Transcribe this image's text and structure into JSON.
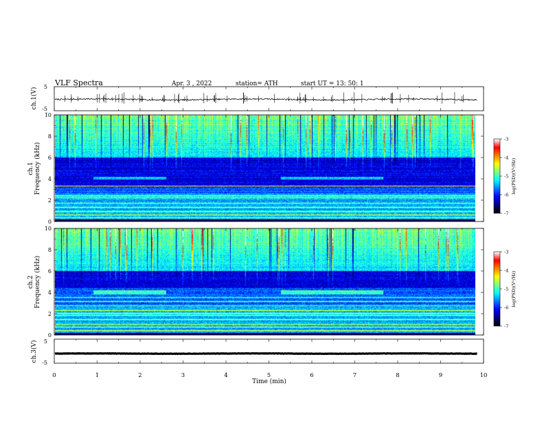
{
  "header": {
    "title": "VLF  Spectra",
    "date": "Apr. 3  , 2022",
    "station": "station= ATH",
    "start": "start  UT  =    13: 50: 1"
  },
  "colors": {
    "colormap": [
      "#000000",
      "#00007f",
      "#0000ff",
      "#007fff",
      "#00ffff",
      "#7fff7f",
      "#ffff00",
      "#ff7f00",
      "#ff0000",
      "#ffffff"
    ],
    "waveform": "#000000"
  },
  "chart_data": [
    {
      "type": "line",
      "id": "ch1-waveform",
      "ylabel": "ch.1(V)",
      "ylim": [
        -5,
        5
      ],
      "yticks": [
        "5",
        "-5"
      ],
      "xlim": [
        0,
        10
      ],
      "series": [
        {
          "baseline_v": -0.3,
          "noise_v": 0.5,
          "spikes": true
        }
      ]
    },
    {
      "type": "heatmap",
      "id": "ch1-spectrogram",
      "ylabel": "ch.1\nFrequency  (kHz)",
      "ylim": [
        0,
        10
      ],
      "yticks": [
        "0",
        "2",
        "4",
        "6",
        "8",
        "10"
      ],
      "xlim": [
        0,
        9.85
      ],
      "colorbar": {
        "label": "log(PSD)(V²/Hz)",
        "range": [
          -7,
          -3
        ],
        "ticks": [
          "-3",
          "-4",
          "-5",
          "-6",
          "-7"
        ]
      },
      "features": {
        "hiss_band_khz": [
          3.9,
          4.2
        ],
        "hiss_intervals_min": [
          [
            0.9,
            2.6
          ],
          [
            5.3,
            7.7
          ]
        ],
        "dark_band_khz": [
          3.2,
          6.0
        ],
        "strong_lines_khz": [
          0.3,
          0.6,
          0.9,
          1.3,
          1.7,
          2.2,
          2.4,
          3.3
        ]
      }
    },
    {
      "type": "heatmap",
      "id": "ch2-spectrogram",
      "ylabel": "ch.2\nFrequency  (kHz)",
      "ylim": [
        0,
        10
      ],
      "yticks": [
        "0",
        "2",
        "4",
        "6",
        "8",
        "10"
      ],
      "xlim": [
        0,
        9.85
      ],
      "colorbar": {
        "label": "log(PSD)(V²/Hz)",
        "range": [
          -7,
          -3
        ],
        "ticks": [
          "-3",
          "-4",
          "-5",
          "-6",
          "-7"
        ]
      },
      "features": {
        "hiss_band_khz": [
          3.8,
          4.2
        ],
        "hiss_intervals_min": [
          [
            0.9,
            2.6
          ],
          [
            5.3,
            7.7
          ]
        ],
        "dark_band_khz": [
          4.4,
          6.0
        ],
        "strong_lines_khz": [
          0.4,
          0.7,
          1.0,
          1.4,
          1.8,
          2.0,
          2.3,
          2.7,
          3.1,
          3.5
        ]
      }
    },
    {
      "type": "line",
      "id": "ch3-waveform",
      "ylabel": "ch.3(V)",
      "ylim": [
        -5,
        5
      ],
      "yticks": [
        "5",
        "-5"
      ],
      "xlim": [
        0,
        10
      ],
      "series": [
        {
          "baseline_v": -1.0,
          "noise_v": 0.15,
          "spikes": false
        }
      ]
    }
  ],
  "xaxis": {
    "label": "Time  (min)",
    "ticks": [
      "0",
      "1",
      "2",
      "3",
      "4",
      "5",
      "6",
      "7",
      "8",
      "9",
      "10"
    ],
    "range": [
      0,
      10
    ]
  }
}
